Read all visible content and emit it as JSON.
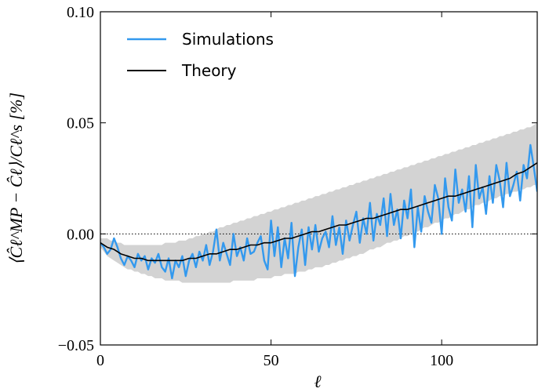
{
  "chart_data": {
    "type": "line",
    "title": "",
    "xlabel": "ℓ",
    "ylabel": "⟨Ĉℓ^MP − Ĉℓ⟩/Cℓ^s [%]",
    "xlim": [
      0,
      128
    ],
    "ylim": [
      -0.05,
      0.1
    ],
    "xticks": [
      0,
      50,
      100
    ],
    "xtick_labels": [
      "0",
      "50",
      "100"
    ],
    "yticks": [
      -0.05,
      0.0,
      0.05,
      0.1
    ],
    "ytick_labels": [
      "−0.05",
      "0.00",
      "0.05",
      "0.10"
    ],
    "reference_line_y": 0.0,
    "legend": {
      "position": "top-left",
      "entries": [
        "Simulations",
        "Theory"
      ]
    },
    "series": [
      {
        "name": "Simulations",
        "color": "#3399ee",
        "x": [
          0,
          1,
          2,
          3,
          4,
          5,
          6,
          7,
          8,
          9,
          10,
          11,
          12,
          13,
          14,
          15,
          16,
          17,
          18,
          19,
          20,
          21,
          22,
          23,
          24,
          25,
          26,
          27,
          28,
          29,
          30,
          31,
          32,
          33,
          34,
          35,
          36,
          37,
          38,
          39,
          40,
          41,
          42,
          43,
          44,
          45,
          46,
          47,
          48,
          49,
          50,
          51,
          52,
          53,
          54,
          55,
          56,
          57,
          58,
          59,
          60,
          61,
          62,
          63,
          64,
          65,
          66,
          67,
          68,
          69,
          70,
          71,
          72,
          73,
          74,
          75,
          76,
          77,
          78,
          79,
          80,
          81,
          82,
          83,
          84,
          85,
          86,
          87,
          88,
          89,
          90,
          91,
          92,
          93,
          94,
          95,
          96,
          97,
          98,
          99,
          100,
          101,
          102,
          103,
          104,
          105,
          106,
          107,
          108,
          109,
          110,
          111,
          112,
          113,
          114,
          115,
          116,
          117,
          118,
          119,
          120,
          121,
          122,
          123,
          124,
          125,
          126,
          127,
          128
        ],
        "values": [
          -0.004,
          -0.006,
          -0.009,
          -0.007,
          -0.002,
          -0.006,
          -0.011,
          -0.014,
          -0.01,
          -0.012,
          -0.015,
          -0.009,
          -0.012,
          -0.01,
          -0.016,
          -0.011,
          -0.013,
          -0.009,
          -0.015,
          -0.017,
          -0.011,
          -0.02,
          -0.012,
          -0.015,
          -0.01,
          -0.019,
          -0.012,
          -0.009,
          -0.015,
          -0.008,
          -0.012,
          -0.005,
          -0.014,
          -0.008,
          0.002,
          -0.012,
          -0.004,
          -0.009,
          -0.014,
          0.0,
          -0.01,
          -0.006,
          -0.012,
          -0.002,
          -0.009,
          -0.008,
          -0.004,
          -0.001,
          -0.012,
          -0.016,
          0.006,
          -0.01,
          0.003,
          -0.015,
          -0.002,
          -0.011,
          0.005,
          -0.019,
          -0.006,
          0.002,
          -0.014,
          0.003,
          -0.007,
          0.004,
          -0.008,
          -0.002,
          0.001,
          -0.006,
          0.008,
          -0.005,
          0.003,
          -0.009,
          0.006,
          -0.003,
          0.004,
          0.01,
          -0.004,
          0.007,
          0.0,
          0.014,
          -0.003,
          0.009,
          0.004,
          0.016,
          -0.001,
          0.018,
          0.004,
          0.011,
          -0.002,
          0.015,
          0.007,
          0.02,
          -0.006,
          0.012,
          0.001,
          0.017,
          0.01,
          0.005,
          0.022,
          0.016,
          0.0,
          0.025,
          0.012,
          0.006,
          0.029,
          0.014,
          0.02,
          0.01,
          0.026,
          0.003,
          0.031,
          0.016,
          0.021,
          0.009,
          0.026,
          0.014,
          0.031,
          0.024,
          0.012,
          0.032,
          0.017,
          0.022,
          0.028,
          0.015,
          0.031,
          0.025,
          0.04,
          0.03,
          0.019
        ],
        "band_lower": [
          -0.006,
          -0.008,
          -0.01,
          -0.011,
          -0.012,
          -0.013,
          -0.014,
          -0.015,
          -0.016,
          -0.016,
          -0.017,
          -0.017,
          -0.018,
          -0.018,
          -0.019,
          -0.019,
          -0.02,
          -0.02,
          -0.02,
          -0.021,
          -0.021,
          -0.021,
          -0.021,
          -0.021,
          -0.022,
          -0.022,
          -0.022,
          -0.022,
          -0.022,
          -0.022,
          -0.022,
          -0.022,
          -0.022,
          -0.022,
          -0.022,
          -0.022,
          -0.022,
          -0.022,
          -0.022,
          -0.021,
          -0.021,
          -0.021,
          -0.021,
          -0.021,
          -0.021,
          -0.021,
          -0.02,
          -0.02,
          -0.02,
          -0.02,
          -0.02,
          -0.019,
          -0.019,
          -0.019,
          -0.018,
          -0.018,
          -0.018,
          -0.018,
          -0.017,
          -0.017,
          -0.017,
          -0.016,
          -0.016,
          -0.015,
          -0.015,
          -0.015,
          -0.014,
          -0.014,
          -0.013,
          -0.013,
          -0.012,
          -0.012,
          -0.011,
          -0.011,
          -0.01,
          -0.01,
          -0.009,
          -0.009,
          -0.008,
          -0.007,
          -0.007,
          -0.006,
          -0.006,
          -0.005,
          -0.004,
          -0.004,
          -0.003,
          -0.003,
          -0.002,
          -0.001,
          -0.001,
          0.0,
          0.001,
          0.001,
          0.002,
          0.003,
          0.003,
          0.004,
          0.005,
          0.005,
          0.006,
          0.007,
          0.007,
          0.008,
          0.009,
          0.009,
          0.01,
          0.011,
          0.011,
          0.012,
          0.013,
          0.013,
          0.014,
          0.014,
          0.015,
          0.016,
          0.016,
          0.017,
          0.017,
          0.018,
          0.018,
          0.019,
          0.019,
          0.02,
          0.02,
          0.021,
          0.021,
          0.022,
          0.022
        ],
        "band_upper": [
          -0.002,
          -0.002,
          -0.002,
          -0.003,
          -0.003,
          -0.004,
          -0.004,
          -0.005,
          -0.005,
          -0.005,
          -0.005,
          -0.005,
          -0.005,
          -0.005,
          -0.005,
          -0.005,
          -0.005,
          -0.005,
          -0.005,
          -0.004,
          -0.004,
          -0.004,
          -0.004,
          -0.003,
          -0.003,
          -0.003,
          -0.002,
          -0.002,
          -0.001,
          -0.001,
          0.0,
          0.0,
          0.001,
          0.001,
          0.002,
          0.003,
          0.003,
          0.004,
          0.004,
          0.005,
          0.005,
          0.006,
          0.006,
          0.007,
          0.007,
          0.008,
          0.008,
          0.009,
          0.009,
          0.01,
          0.01,
          0.011,
          0.011,
          0.012,
          0.012,
          0.013,
          0.013,
          0.014,
          0.014,
          0.015,
          0.015,
          0.016,
          0.016,
          0.017,
          0.017,
          0.018,
          0.018,
          0.019,
          0.019,
          0.02,
          0.02,
          0.021,
          0.021,
          0.022,
          0.022,
          0.023,
          0.023,
          0.024,
          0.024,
          0.025,
          0.025,
          0.026,
          0.026,
          0.027,
          0.027,
          0.028,
          0.028,
          0.029,
          0.029,
          0.03,
          0.03,
          0.031,
          0.031,
          0.032,
          0.032,
          0.033,
          0.033,
          0.034,
          0.034,
          0.035,
          0.035,
          0.036,
          0.036,
          0.037,
          0.037,
          0.038,
          0.038,
          0.039,
          0.039,
          0.04,
          0.04,
          0.041,
          0.041,
          0.042,
          0.042,
          0.043,
          0.043,
          0.044,
          0.044,
          0.045,
          0.045,
          0.046,
          0.046,
          0.047,
          0.047,
          0.048,
          0.048,
          0.049,
          0.05
        ]
      },
      {
        "name": "Theory",
        "color": "#000000",
        "x": [
          0,
          2,
          4,
          6,
          8,
          10,
          12,
          14,
          16,
          18,
          20,
          22,
          24,
          26,
          28,
          30,
          32,
          34,
          36,
          38,
          40,
          42,
          44,
          46,
          48,
          50,
          52,
          54,
          56,
          58,
          60,
          62,
          64,
          66,
          68,
          70,
          72,
          74,
          76,
          78,
          80,
          82,
          84,
          86,
          88,
          90,
          92,
          94,
          96,
          98,
          100,
          102,
          104,
          106,
          108,
          110,
          112,
          114,
          116,
          118,
          120,
          122,
          124,
          126,
          128
        ],
        "values": [
          -0.004,
          -0.006,
          -0.007,
          -0.009,
          -0.01,
          -0.011,
          -0.011,
          -0.012,
          -0.012,
          -0.012,
          -0.012,
          -0.012,
          -0.012,
          -0.011,
          -0.011,
          -0.01,
          -0.009,
          -0.009,
          -0.008,
          -0.007,
          -0.007,
          -0.006,
          -0.005,
          -0.005,
          -0.004,
          -0.004,
          -0.003,
          -0.002,
          -0.002,
          -0.001,
          0.0,
          0.001,
          0.001,
          0.002,
          0.003,
          0.004,
          0.004,
          0.005,
          0.006,
          0.007,
          0.007,
          0.008,
          0.009,
          0.01,
          0.011,
          0.011,
          0.012,
          0.013,
          0.014,
          0.015,
          0.016,
          0.017,
          0.017,
          0.018,
          0.019,
          0.02,
          0.021,
          0.022,
          0.023,
          0.024,
          0.025,
          0.027,
          0.028,
          0.03,
          0.032
        ]
      }
    ]
  }
}
